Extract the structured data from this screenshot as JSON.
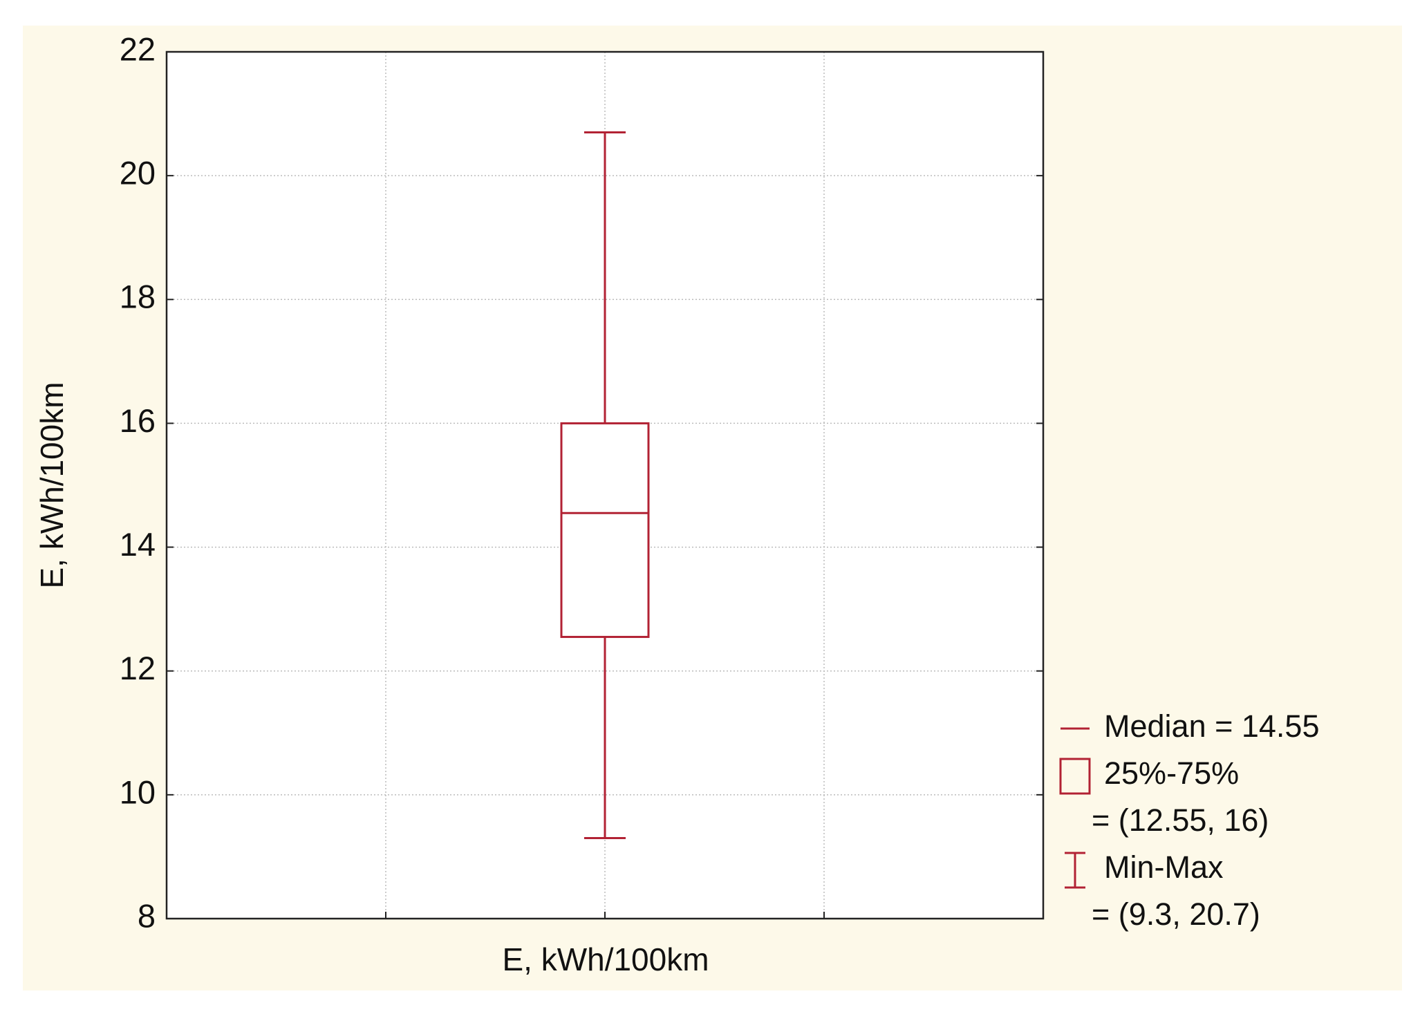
{
  "chart_data": {
    "type": "box",
    "y_label": "E, kWh/100km",
    "x_label": "E, kWh/100km",
    "box": {
      "min": 9.3,
      "q1": 12.55,
      "median": 14.55,
      "q3": 16,
      "max": 20.7
    },
    "color": "#b22234",
    "ylim": [
      8,
      22
    ],
    "yticks": [
      8,
      10,
      12,
      14,
      16,
      18,
      20,
      22
    ],
    "grid": true,
    "legend_position": "right",
    "legend": [
      {
        "icon": "median",
        "lines": [
          "Median = 14.55"
        ]
      },
      {
        "icon": "box",
        "lines": [
          "25%-75%",
          "= (12.55, 16)"
        ]
      },
      {
        "icon": "whisker",
        "lines": [
          "Min-Max",
          "= (9.3, 20.7)"
        ]
      }
    ]
  }
}
